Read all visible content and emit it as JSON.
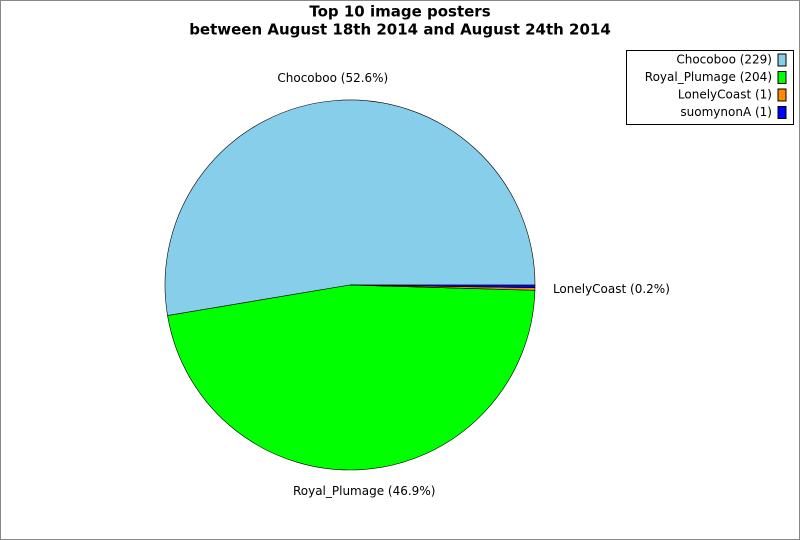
{
  "chart_data": {
    "type": "pie",
    "title": "Top 10 image posters",
    "subtitle": "between August 18th 2014 and August 24th 2014",
    "categories": [
      "Chocoboo",
      "Royal_Plumage",
      "LonelyCoast",
      "suomynonA"
    ],
    "values": [
      229,
      204,
      1,
      1
    ],
    "colors": [
      "#87ceeb",
      "#00ff00",
      "#ff8c00",
      "#0000ff"
    ],
    "slice_labels": [
      "Chocoboo (52.6%)",
      "Royal_Plumage (46.9%)",
      "LonelyCoast (0.2%)",
      null
    ],
    "legend_labels": [
      "Chocoboo (229)",
      "Royal_Plumage (204)",
      "LonelyCoast (1)",
      "suomynonA (1)"
    ],
    "legend": "top-right"
  }
}
